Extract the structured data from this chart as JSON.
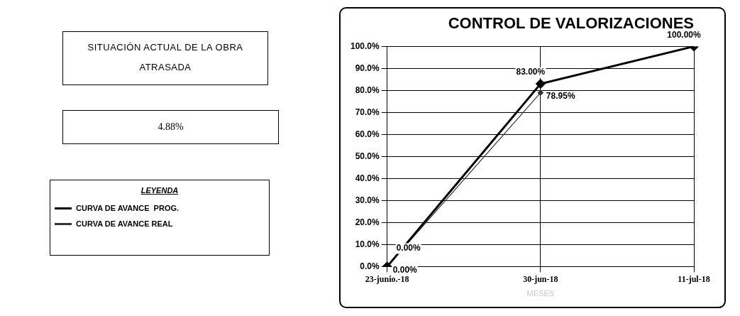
{
  "chart_data": {
    "type": "line",
    "title": "CONTROL DE VALORIZACIONES",
    "xlabel": "MESES",
    "categories": [
      "23-junio.-18",
      "30-jun-18",
      "11-jul-18"
    ],
    "series": [
      {
        "name": "CURVA DE AVANCE  PROG.",
        "color": "#000000",
        "values": [
          0,
          83,
          100
        ],
        "value_labels": [
          "0.00%",
          "83.00%",
          "100.00%"
        ]
      },
      {
        "name": "CURVA DE AVANCE REAL",
        "color": "#333333",
        "values": [
          0,
          78.95,
          null
        ],
        "value_labels": [
          "0.00%",
          "78.95%",
          null
        ]
      }
    ],
    "ylim": [
      0,
      100
    ],
    "yticks": [
      {
        "value": 0,
        "label": "0.0%"
      },
      {
        "value": 10,
        "label": "10.0%"
      },
      {
        "value": 20,
        "label": "20.0%"
      },
      {
        "value": 30,
        "label": "30.0%"
      },
      {
        "value": 40,
        "label": "40.0%"
      },
      {
        "value": 50,
        "label": "50.0%"
      },
      {
        "value": 60,
        "label": "60.0%"
      },
      {
        "value": 70,
        "label": "70.0%"
      },
      {
        "value": 80,
        "label": "80.0%"
      },
      {
        "value": 90,
        "label": "90.0%"
      },
      {
        "value": 100,
        "label": "100.0%"
      }
    ],
    "grid": true,
    "legend": "left",
    "legend_title": "LEYENDA",
    "marker": "diamond",
    "line_style": "solid",
    "annotations": [
      "SITUACIÓN ACTUAL DE LA OBRA",
      "ATRASADA",
      "4.88%"
    ]
  }
}
